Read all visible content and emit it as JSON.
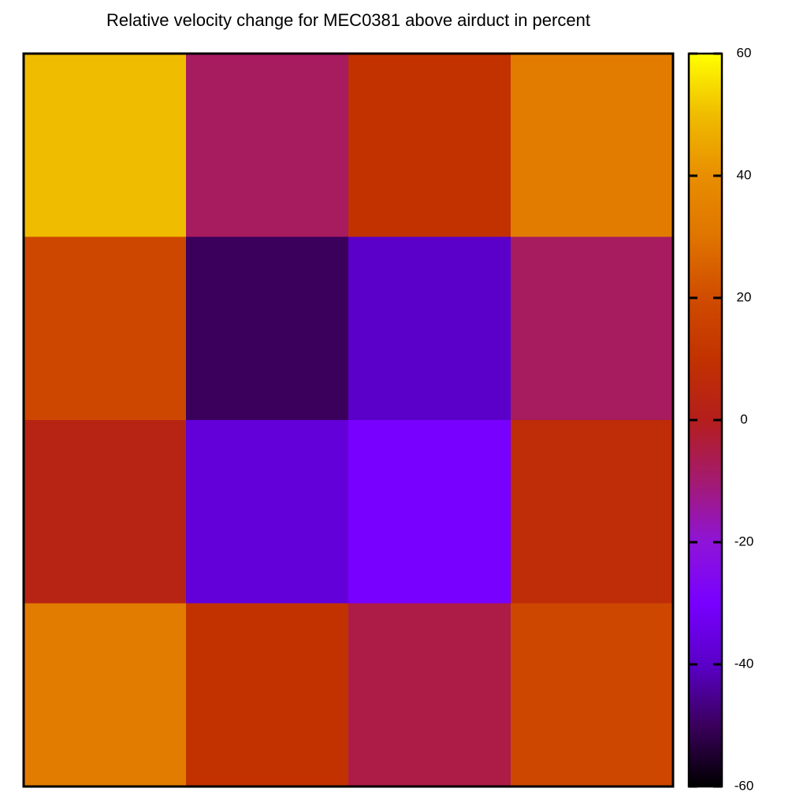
{
  "chart_data": {
    "type": "heatmap",
    "title": "Relative velocity change for MEC0381 above airduct in percent",
    "z": [
      [
        50,
        -8,
        10,
        33
      ],
      [
        18,
        -50,
        -40,
        -8
      ],
      [
        3,
        -37,
        -30,
        7
      ],
      [
        33,
        10,
        -5,
        18
      ]
    ],
    "zlim": [
      -60,
      60
    ],
    "zticks": [
      -60,
      -40,
      -20,
      0,
      20,
      40,
      60
    ],
    "colormap": [
      "#000000",
      "#3a005c",
      "#5a00c8",
      "#7800ff",
      "#8e14d8",
      "#a41a70",
      "#b41e1c",
      "#c23200",
      "#d04c00",
      "#e07400",
      "#e88e00",
      "#f0bc00",
      "#ffff00"
    ]
  }
}
